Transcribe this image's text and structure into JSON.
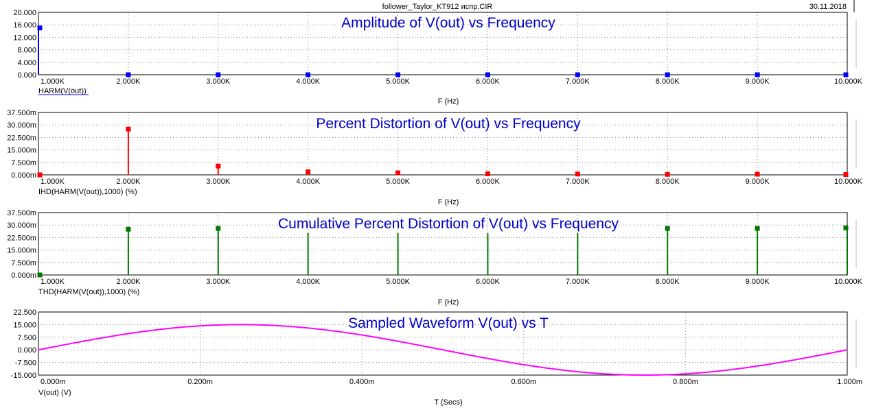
{
  "window": {
    "file_title": "follower_Taylor_KT912 испр.CIR",
    "date": "30.11.2018"
  },
  "chart_data": [
    {
      "type": "bar",
      "title": "Amplitude of V(out) vs Frequency",
      "xlabel": "F (Hz)",
      "ylabel": "",
      "trace_label": "HARM(V(out))",
      "color": "#0000ff",
      "xlim": [
        1000,
        10000
      ],
      "ylim": [
        0,
        20
      ],
      "yticks": [
        "0.000",
        "4.000",
        "8.000",
        "12.000",
        "16.000",
        "20.000"
      ],
      "xticks": [
        "1.000K",
        "2.000K",
        "3.000K",
        "4.000K",
        "5.000K",
        "6.000K",
        "7.000K",
        "8.000K",
        "9.000K",
        "10.000K"
      ],
      "x": [
        1000,
        2000,
        3000,
        4000,
        5000,
        6000,
        7000,
        8000,
        9000,
        10000
      ],
      "values": [
        15,
        0.004,
        0.0008,
        0.0003,
        0.0002,
        0.0001,
        0.0001,
        0.0001,
        0.0001,
        0.0001
      ]
    },
    {
      "type": "bar",
      "title": "Percent Distortion of V(out) vs Frequency",
      "xlabel": "F (Hz)",
      "ylabel": "",
      "trace_label": "IHD(HARM(V(out)),1000) (%)",
      "color": "#ff0000",
      "xlim": [
        1000,
        10000
      ],
      "ylim": [
        0,
        0.0375
      ],
      "yticks": [
        "0.000m",
        "7.500m",
        "15.000m",
        "22.500m",
        "30.000m",
        "37.500m"
      ],
      "xticks": [
        "1.000K",
        "2.000K",
        "3.000K",
        "4.000K",
        "5.000K",
        "6.000K",
        "7.000K",
        "8.000K",
        "9.000K",
        "10.000K"
      ],
      "x": [
        1000,
        2000,
        3000,
        4000,
        5000,
        6000,
        7000,
        8000,
        9000,
        10000
      ],
      "values": [
        0,
        0.0275,
        0.0053,
        0.0018,
        0.0012,
        0.0006,
        0.0005,
        0.0003,
        0.0004,
        0.0002
      ]
    },
    {
      "type": "bar",
      "title": "Cumulative Percent Distortion of V(out) vs Frequency",
      "xlabel": "F (Hz)",
      "ylabel": "",
      "trace_label": "THD(HARM(V(out)),1000) (%)",
      "color": "#007700",
      "xlim": [
        1000,
        10000
      ],
      "ylim": [
        0,
        0.0375
      ],
      "yticks": [
        "0.000m",
        "7.500m",
        "15.000m",
        "22.500m",
        "30.000m",
        "37.500m"
      ],
      "xticks": [
        "1.000K",
        "2.000K",
        "3.000K",
        "4.000K",
        "5.000K",
        "6.000K",
        "7.000K",
        "8.000K",
        "9.000K",
        "10.000K"
      ],
      "x": [
        1000,
        2000,
        3000,
        4000,
        5000,
        6000,
        7000,
        8000,
        9000,
        10000
      ],
      "values": [
        0,
        0.0275,
        0.028,
        0.0252,
        0.0252,
        0.0252,
        0.0252,
        0.028,
        0.028,
        0.0283
      ],
      "markers": [
        true,
        true,
        true,
        false,
        false,
        false,
        false,
        true,
        true,
        true
      ]
    },
    {
      "type": "line",
      "title": "Sampled Waveform  V(out) vs T",
      "xlabel": "T (Secs)",
      "ylabel": "",
      "trace_label": "V(out) (V)",
      "color": "#ff00ff",
      "xlim": [
        0,
        0.001
      ],
      "ylim": [
        -15,
        22.5
      ],
      "yticks": [
        "-15.000",
        "-7.500",
        "0.000",
        "7.500",
        "15.000",
        "22.500"
      ],
      "xticks": [
        "0.000m",
        "0.200m",
        "0.400m",
        "0.600m",
        "0.800m",
        "1.000m"
      ],
      "x": [
        0,
        5e-05,
        0.0001,
        0.00015,
        0.0002,
        0.00025,
        0.0003,
        0.00035,
        0.0004,
        0.00045,
        0.0005,
        0.00055,
        0.0006,
        0.00065,
        0.0007,
        0.00075,
        0.0008,
        0.00085,
        0.0009,
        0.00095,
        0.001
      ],
      "values": [
        0,
        4.64,
        8.82,
        12.14,
        14.27,
        15,
        14.27,
        12.14,
        8.82,
        4.64,
        0,
        -4.64,
        -8.82,
        -12.14,
        -14.27,
        -15,
        -14.27,
        -12.14,
        -8.82,
        -4.64,
        0
      ]
    }
  ]
}
